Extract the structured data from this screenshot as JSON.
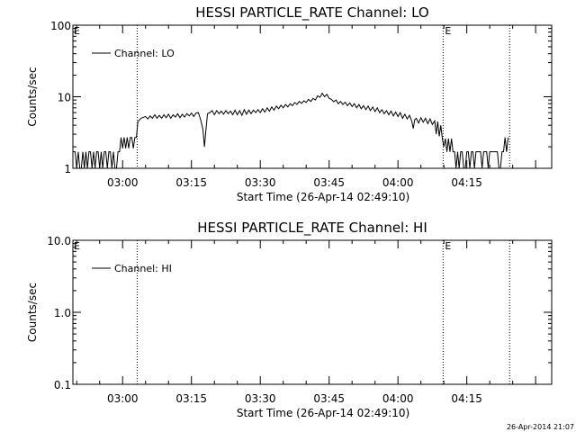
{
  "footer_timestamp": "26-Apr-2014 21:07",
  "chart_data": [
    {
      "type": "line",
      "title": "HESSI PARTICLE_RATE Channel: LO",
      "xlabel": "Start Time (26-Apr-14 02:49:10)",
      "ylabel": "Counts/sec",
      "yscale": "log",
      "ylim": [
        1,
        100
      ],
      "xlim": [
        "02:49:10",
        "04:33:30"
      ],
      "x_ticks": [
        "03:00",
        "03:15",
        "03:30",
        "03:45",
        "04:00",
        "04:15"
      ],
      "y_ticks": [
        "1",
        "10",
        "100"
      ],
      "legend": {
        "entries": [
          "Channel: LO"
        ],
        "placement": "top-left"
      },
      "markers": [
        {
          "time": "03:03:10",
          "label": ""
        },
        {
          "time": "04:09:50",
          "label": "E"
        },
        {
          "time": "04:24:20",
          "label": ""
        }
      ],
      "corner_label_left": "E",
      "series": [
        {
          "name": "Channel: LO",
          "points": [
            [
              "02:49:10",
              1.7
            ],
            [
              "02:49:40",
              1.7
            ],
            [
              "02:50:00",
              1
            ],
            [
              "02:50:20",
              1.7
            ],
            [
              "02:50:40",
              1
            ],
            [
              "02:51:00",
              1
            ],
            [
              "02:51:20",
              1.7
            ],
            [
              "02:51:40",
              1
            ],
            [
              "02:52:00",
              1.7
            ],
            [
              "02:52:20",
              1
            ],
            [
              "02:52:40",
              1.7
            ],
            [
              "02:53:00",
              1.7
            ],
            [
              "02:53:20",
              1
            ],
            [
              "02:53:40",
              1.7
            ],
            [
              "02:54:00",
              1
            ],
            [
              "02:54:20",
              1.7
            ],
            [
              "02:54:40",
              1.7
            ],
            [
              "02:55:00",
              1
            ],
            [
              "02:55:20",
              1.7
            ],
            [
              "02:55:40",
              1
            ],
            [
              "02:56:00",
              1.7
            ],
            [
              "02:56:20",
              1.7
            ],
            [
              "02:56:40",
              1
            ],
            [
              "02:57:00",
              1.7
            ],
            [
              "02:57:20",
              1.7
            ],
            [
              "02:57:40",
              1
            ],
            [
              "02:58:00",
              1.7
            ],
            [
              "02:58:20",
              1
            ],
            [
              "02:58:40",
              1
            ],
            [
              "02:59:00",
              1.7
            ],
            [
              "02:59:20",
              1.7
            ],
            [
              "02:59:40",
              2.7
            ],
            [
              "03:00:00",
              1.9
            ],
            [
              "03:00:20",
              2.7
            ],
            [
              "03:00:40",
              1.9
            ],
            [
              "03:01:00",
              2.7
            ],
            [
              "03:01:20",
              1.9
            ],
            [
              "03:01:40",
              2.7
            ],
            [
              "03:02:00",
              2.7
            ],
            [
              "03:02:20",
              1.9
            ],
            [
              "03:02:40",
              2.7
            ],
            [
              "03:03:00",
              2.7
            ],
            [
              "03:03:20",
              4.5
            ],
            [
              "03:04:00",
              5.0
            ],
            [
              "03:05:00",
              5.3
            ],
            [
              "03:05:30",
              4.9
            ],
            [
              "03:06:00",
              5.4
            ],
            [
              "03:06:30",
              5.0
            ],
            [
              "03:07:00",
              5.6
            ],
            [
              "03:07:30",
              5.0
            ],
            [
              "03:08:00",
              5.5
            ],
            [
              "03:08:30",
              5.0
            ],
            [
              "03:09:00",
              5.6
            ],
            [
              "03:09:30",
              5.1
            ],
            [
              "03:10:00",
              5.7
            ],
            [
              "03:10:30",
              5.0
            ],
            [
              "03:11:00",
              5.6
            ],
            [
              "03:11:30",
              5.2
            ],
            [
              "03:12:00",
              5.8
            ],
            [
              "03:12:30",
              5.1
            ],
            [
              "03:13:00",
              5.7
            ],
            [
              "03:13:30",
              5.2
            ],
            [
              "03:14:00",
              5.8
            ],
            [
              "03:14:30",
              5.4
            ],
            [
              "03:15:00",
              5.9
            ],
            [
              "03:15:30",
              5.3
            ],
            [
              "03:16:00",
              5.9
            ],
            [
              "03:16:30",
              6.0
            ],
            [
              "03:17:00",
              4.8
            ],
            [
              "03:17:30",
              3.5
            ],
            [
              "03:17:50",
              2.0
            ],
            [
              "03:18:10",
              3.5
            ],
            [
              "03:18:30",
              5.8
            ],
            [
              "03:19:00",
              6.0
            ],
            [
              "03:19:30",
              6.4
            ],
            [
              "03:20:00",
              5.6
            ],
            [
              "03:20:30",
              6.4
            ],
            [
              "03:21:00",
              5.8
            ],
            [
              "03:21:30",
              6.3
            ],
            [
              "03:22:00",
              5.7
            ],
            [
              "03:22:30",
              6.4
            ],
            [
              "03:23:00",
              5.8
            ],
            [
              "03:23:30",
              6.3
            ],
            [
              "03:24:00",
              5.6
            ],
            [
              "03:24:30",
              6.5
            ],
            [
              "03:25:00",
              5.6
            ],
            [
              "03:25:30",
              6.4
            ],
            [
              "03:26:00",
              5.5
            ],
            [
              "03:26:30",
              6.6
            ],
            [
              "03:27:00",
              5.7
            ],
            [
              "03:27:30",
              6.5
            ],
            [
              "03:28:00",
              5.8
            ],
            [
              "03:28:30",
              6.5
            ],
            [
              "03:29:00",
              6.0
            ],
            [
              "03:29:30",
              6.6
            ],
            [
              "03:30:00",
              6.0
            ],
            [
              "03:30:30",
              6.8
            ],
            [
              "03:31:00",
              6.1
            ],
            [
              "03:31:30",
              7.0
            ],
            [
              "03:32:00",
              6.3
            ],
            [
              "03:32:30",
              7.2
            ],
            [
              "03:33:00",
              6.5
            ],
            [
              "03:33:30",
              7.4
            ],
            [
              "03:34:00",
              6.8
            ],
            [
              "03:34:30",
              7.6
            ],
            [
              "03:35:00",
              7.0
            ],
            [
              "03:35:30",
              7.8
            ],
            [
              "03:36:00",
              7.2
            ],
            [
              "03:36:30",
              8.0
            ],
            [
              "03:37:00",
              7.5
            ],
            [
              "03:37:30",
              8.3
            ],
            [
              "03:38:00",
              7.8
            ],
            [
              "03:38:30",
              8.6
            ],
            [
              "03:39:00",
              8.1
            ],
            [
              "03:39:30",
              8.8
            ],
            [
              "03:40:00",
              8.3
            ],
            [
              "03:40:30",
              9.2
            ],
            [
              "03:41:00",
              8.6
            ],
            [
              "03:41:30",
              9.5
            ],
            [
              "03:42:00",
              9.0
            ],
            [
              "03:42:30",
              10.3
            ],
            [
              "03:43:00",
              9.8
            ],
            [
              "03:43:30",
              11.2
            ],
            [
              "03:44:00",
              10.0
            ],
            [
              "03:44:30",
              10.8
            ],
            [
              "03:45:00",
              9.5
            ],
            [
              "03:45:30",
              9.2
            ],
            [
              "03:46:00",
              8.5
            ],
            [
              "03:46:30",
              9.0
            ],
            [
              "03:47:00",
              8.0
            ],
            [
              "03:47:30",
              8.6
            ],
            [
              "03:48:00",
              7.8
            ],
            [
              "03:48:30",
              8.4
            ],
            [
              "03:49:00",
              7.5
            ],
            [
              "03:49:30",
              8.2
            ],
            [
              "03:50:00",
              7.3
            ],
            [
              "03:50:30",
              8.0
            ],
            [
              "03:51:00",
              7.0
            ],
            [
              "03:51:30",
              7.8
            ],
            [
              "03:52:00",
              6.8
            ],
            [
              "03:52:30",
              7.5
            ],
            [
              "03:53:00",
              6.6
            ],
            [
              "03:53:30",
              7.4
            ],
            [
              "03:54:00",
              6.4
            ],
            [
              "03:54:30",
              7.2
            ],
            [
              "03:55:00",
              6.2
            ],
            [
              "03:55:30",
              7.0
            ],
            [
              "03:56:00",
              6.0
            ],
            [
              "03:56:30",
              6.6
            ],
            [
              "03:57:00",
              5.8
            ],
            [
              "03:57:30",
              6.4
            ],
            [
              "03:58:00",
              5.6
            ],
            [
              "03:58:30",
              6.3
            ],
            [
              "03:59:00",
              5.4
            ],
            [
              "03:59:30",
              6.1
            ],
            [
              "04:00:00",
              5.3
            ],
            [
              "04:00:30",
              6.0
            ],
            [
              "04:01:00",
              5.0
            ],
            [
              "04:01:30",
              5.7
            ],
            [
              "04:02:00",
              4.9
            ],
            [
              "04:02:30",
              5.5
            ],
            [
              "04:03:00",
              4.6
            ],
            [
              "04:03:20",
              3.6
            ],
            [
              "04:03:40",
              4.8
            ],
            [
              "04:04:00",
              5.0
            ],
            [
              "04:04:30",
              4.3
            ],
            [
              "04:05:00",
              5.1
            ],
            [
              "04:05:30",
              4.4
            ],
            [
              "04:06:00",
              5.0
            ],
            [
              "04:06:30",
              4.2
            ],
            [
              "04:07:00",
              4.9
            ],
            [
              "04:07:30",
              4.1
            ],
            [
              "04:08:00",
              4.6
            ],
            [
              "04:08:20",
              3.0
            ],
            [
              "04:08:40",
              4.5
            ],
            [
              "04:09:00",
              2.8
            ],
            [
              "04:09:20",
              4.0
            ],
            [
              "04:09:40",
              2.6
            ],
            [
              "04:10:00",
              2.0
            ],
            [
              "04:10:20",
              2.6
            ],
            [
              "04:10:40",
              1.7
            ],
            [
              "04:11:00",
              2.6
            ],
            [
              "04:11:20",
              1.7
            ],
            [
              "04:11:40",
              2.6
            ],
            [
              "04:12:00",
              1.7
            ],
            [
              "04:12:20",
              1.7
            ],
            [
              "04:12:40",
              1.0
            ],
            [
              "04:13:00",
              1.7
            ],
            [
              "04:13:20",
              1.0
            ],
            [
              "04:13:40",
              1.7
            ],
            [
              "04:14:00",
              1.7
            ],
            [
              "04:14:20",
              1.0
            ],
            [
              "04:14:40",
              1.0
            ],
            [
              "04:15:00",
              1.7
            ],
            [
              "04:15:20",
              1.7
            ],
            [
              "04:15:40",
              1.0
            ],
            [
              "04:16:00",
              1.7
            ],
            [
              "04:16:20",
              1.7
            ],
            [
              "04:16:40",
              1.0
            ],
            [
              "04:17:00",
              1.7
            ],
            [
              "04:17:20",
              1.7
            ],
            [
              "04:17:40",
              1.7
            ],
            [
              "04:18:00",
              1.7
            ],
            [
              "04:18:20",
              1.0
            ],
            [
              "04:18:40",
              1.7
            ],
            [
              "04:19:00",
              1.7
            ],
            [
              "04:19:20",
              1.7
            ],
            [
              "04:19:40",
              1.0
            ],
            [
              "04:20:00",
              1.7
            ],
            [
              "04:20:20",
              1.7
            ],
            [
              "04:20:40",
              1.7
            ],
            [
              "04:21:00",
              1.7
            ],
            [
              "04:21:20",
              1.7
            ],
            [
              "04:21:40",
              1.7
            ],
            [
              "04:22:00",
              1.0
            ],
            [
              "04:22:20",
              1.0
            ],
            [
              "04:22:40",
              1.7
            ],
            [
              "04:23:00",
              1.7
            ],
            [
              "04:23:20",
              2.7
            ],
            [
              "04:23:40",
              1.7
            ],
            [
              "04:24:00",
              2.7
            ]
          ]
        }
      ]
    },
    {
      "type": "line",
      "title": "HESSI PARTICLE_RATE Channel: HI",
      "xlabel": "Start Time (26-Apr-14 02:49:10)",
      "ylabel": "Counts/sec",
      "yscale": "log",
      "ylim": [
        0.1,
        10
      ],
      "xlim": [
        "02:49:10",
        "04:33:30"
      ],
      "x_ticks": [
        "03:00",
        "03:15",
        "03:30",
        "03:45",
        "04:00",
        "04:15"
      ],
      "y_ticks": [
        "0.1",
        "1.0",
        "10.0"
      ],
      "legend": {
        "entries": [
          "Channel: HI"
        ],
        "placement": "top-left"
      },
      "markers": [
        {
          "time": "03:03:10",
          "label": ""
        },
        {
          "time": "04:09:50",
          "label": "E"
        },
        {
          "time": "04:24:20",
          "label": ""
        }
      ],
      "corner_label_left": "E",
      "series": [
        {
          "name": "Channel: HI",
          "points": []
        }
      ]
    }
  ]
}
